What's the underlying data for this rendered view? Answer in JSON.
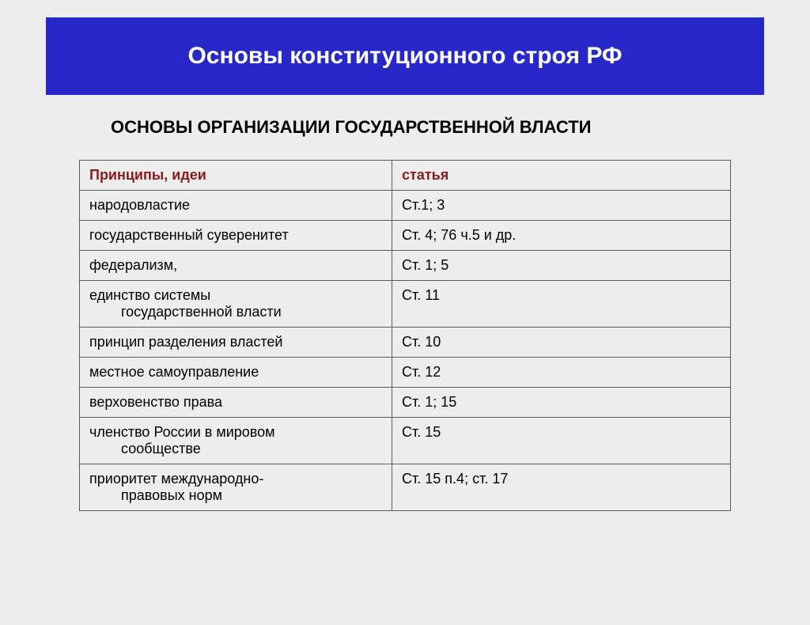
{
  "colors": {
    "page_bg": "#ededed",
    "banner_bg": "#2828c8",
    "banner_text": "#ffffff",
    "subtitle_text": "#000000",
    "header_text": "#8b1a1a",
    "cell_text": "#000000",
    "border": "#595959"
  },
  "title": "Основы конституционного строя РФ",
  "subtitle": "ОСНОВЫ ОРГАНИЗАЦИИ ГОСУДАРСТВЕННОЙ ВЛАСТИ",
  "table": {
    "headers": {
      "principle": "Принципы, идеи",
      "article": "статья"
    },
    "rows": [
      {
        "principle_line1": "народовластие",
        "principle_line2": "",
        "article": "Ст.1; 3"
      },
      {
        "principle_line1": "государственный суверенитет",
        "principle_line2": "",
        "article": " Ст. 4; 76 ч.5 и др."
      },
      {
        "principle_line1": "федерализм,",
        "principle_line2": "",
        "article": "Ст. 1; 5"
      },
      {
        "principle_line1": "единство системы",
        "principle_line2": "государственной власти",
        "article": "Ст. 11"
      },
      {
        "principle_line1": "принцип разделения властей",
        "principle_line2": "",
        "article": "Ст. 10"
      },
      {
        "principle_line1": "местное самоуправление",
        "principle_line2": "",
        "article": "Ст. 12"
      },
      {
        "principle_line1": "верховенство права",
        "principle_line2": "",
        "article": "Ст. 1; 15"
      },
      {
        "principle_line1": "членство России в мировом",
        "principle_line2": "сообществе",
        "article": "Ст. 15"
      },
      {
        "principle_line1": "приоритет международно-",
        "principle_line2": "правовых норм",
        "article": "Ст. 15 п.4; ст. 17"
      }
    ]
  }
}
